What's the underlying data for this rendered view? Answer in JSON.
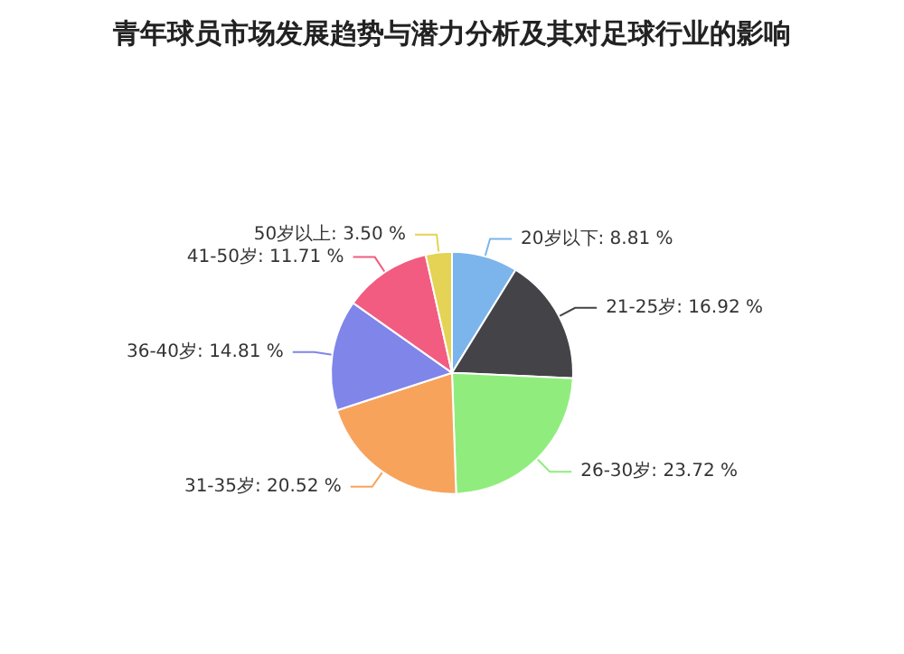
{
  "chart_data": {
    "type": "pie",
    "title": "青年球员市场发展趋势与潜力分析及其对足球行业的影响",
    "categories": [
      "20岁以下",
      "21-25岁",
      "26-30岁",
      "31-35岁",
      "36-40岁",
      "41-50岁",
      "50岁以上"
    ],
    "values": [
      8.81,
      16.92,
      23.72,
      20.52,
      14.81,
      11.71,
      3.5
    ],
    "value_labels": [
      "8.81 %",
      "16.92 %",
      "23.72 %",
      "20.52 %",
      "14.81 %",
      "11.71 %",
      "3.50 %"
    ],
    "colors": [
      "#7cb5ec",
      "#434348",
      "#90ed7d",
      "#f7a35c",
      "#8085e9",
      "#f15c80",
      "#e4d354"
    ],
    "legend": false
  }
}
